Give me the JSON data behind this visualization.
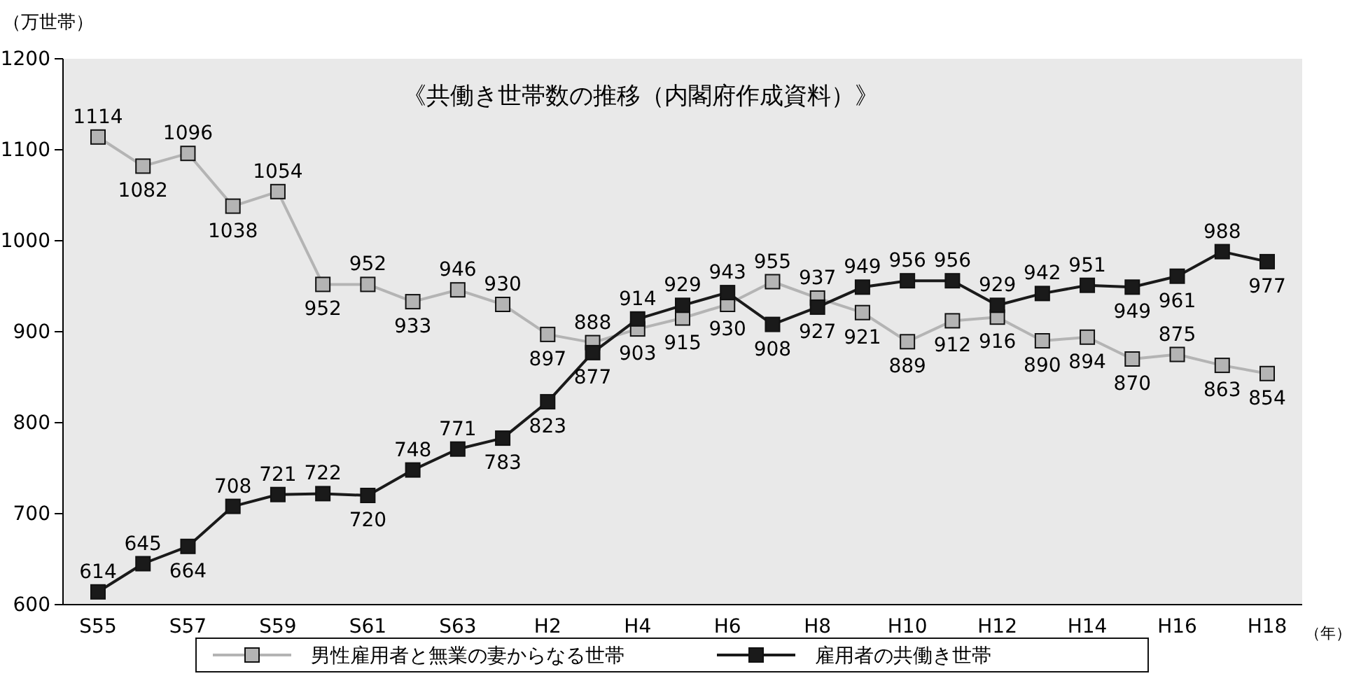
{
  "chart_data": {
    "type": "line",
    "title": "《共働き世帯数の推移（内閣府作成資料）》",
    "ylabel": "（万世帯）",
    "xlabel": "（年）",
    "categories": [
      "S55",
      null,
      "S57",
      null,
      "S59",
      null,
      "S61",
      null,
      "S63",
      null,
      "H2",
      null,
      "H4",
      null,
      "H6",
      null,
      "H8",
      null,
      "H10",
      null,
      "H12",
      null,
      "H14",
      null,
      "H16",
      null,
      "H18"
    ],
    "series": [
      {
        "name": "男性雇用者と無業の妻からなる世帯",
        "color": "#b4b4b4",
        "values": [
          1114,
          1082,
          1096,
          1038,
          1054,
          952,
          952,
          933,
          946,
          930,
          897,
          888,
          903,
          915,
          930,
          955,
          937,
          921,
          889,
          912,
          916,
          890,
          894,
          870,
          875,
          863,
          854
        ]
      },
      {
        "name": "雇用者の共働き世帯",
        "color": "#1a1a1a",
        "values": [
          614,
          645,
          664,
          708,
          721,
          722,
          720,
          748,
          771,
          783,
          823,
          877,
          914,
          929,
          943,
          908,
          927,
          949,
          956,
          956,
          929,
          942,
          951,
          949,
          961,
          988,
          977
        ]
      }
    ],
    "ylim": [
      600,
      1200
    ],
    "yticks": [
      600,
      700,
      800,
      900,
      1000,
      1100,
      1200
    ],
    "grid": false,
    "legend": "bottom",
    "marker": "square",
    "line_style": "solid",
    "data_labels": true
  }
}
